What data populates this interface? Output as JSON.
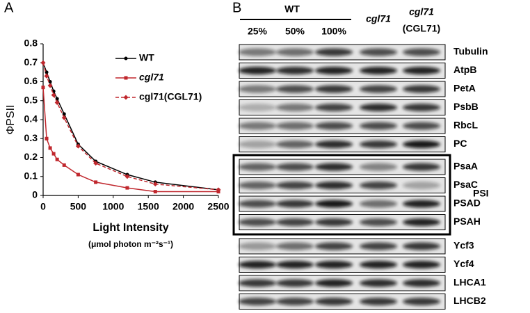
{
  "chart_data": {
    "type": "line",
    "panel_label": "A",
    "x_label": "Light Intensity",
    "x_unit_label": "(μmol photon m⁻²s⁻¹)",
    "y_label": "ΦPSII",
    "x": [
      0,
      50,
      100,
      150,
      200,
      300,
      500,
      750,
      1200,
      1600,
      2500
    ],
    "series": [
      {
        "name": "WT",
        "color": "#000000",
        "marker": "circle",
        "dash": false,
        "italic": false,
        "values": [
          0.7,
          0.65,
          0.6,
          0.55,
          0.51,
          0.43,
          0.27,
          0.18,
          0.11,
          0.07,
          0.03
        ]
      },
      {
        "name": "cgl71",
        "color": "#c0272d",
        "marker": "square",
        "dash": false,
        "italic": true,
        "values": [
          0.57,
          0.3,
          0.25,
          0.22,
          0.19,
          0.16,
          0.11,
          0.07,
          0.04,
          0.02,
          0.02
        ]
      },
      {
        "name": "cgl71(CGL71)",
        "color": "#c0272d",
        "marker": "diamond",
        "dash": true,
        "italic": false,
        "values": [
          0.7,
          0.63,
          0.58,
          0.53,
          0.49,
          0.41,
          0.26,
          0.17,
          0.1,
          0.06,
          0.03
        ]
      }
    ],
    "xlim": [
      0,
      2500
    ],
    "xticks": [
      0,
      500,
      1000,
      1500,
      2000,
      2500
    ],
    "ylim": [
      0,
      0.8
    ],
    "yticks": [
      0,
      0.1,
      0.2,
      0.3,
      0.4,
      0.5,
      0.6,
      0.7,
      0.8
    ],
    "grid": false,
    "legend": "upper right"
  },
  "blot": {
    "panel_label": "B",
    "group_label": "WT",
    "lanes": [
      "25%",
      "50%",
      "100%",
      "cgl71",
      "cgl71"
    ],
    "lane5_sub": "(CGL71)",
    "sections": [
      {
        "rows": [
          {
            "name": "Tubulin",
            "bands": [
              0.5,
              0.55,
              0.8,
              0.7,
              0.7
            ]
          },
          {
            "name": "AtpB",
            "bands": [
              0.9,
              0.85,
              0.9,
              0.9,
              0.9
            ]
          },
          {
            "name": "PetA",
            "bands": [
              0.5,
              0.7,
              0.8,
              0.75,
              0.8
            ]
          },
          {
            "name": "PsbB",
            "bands": [
              0.25,
              0.5,
              0.75,
              0.85,
              0.8
            ]
          },
          {
            "name": "RbcL",
            "bands": [
              0.5,
              0.55,
              0.7,
              0.7,
              0.7
            ]
          },
          {
            "name": "PC",
            "bands": [
              0.3,
              0.6,
              0.85,
              0.8,
              0.95
            ]
          }
        ]
      },
      {
        "label": "PSI",
        "rows": [
          {
            "name": "PsaA",
            "bands": [
              0.6,
              0.7,
              0.85,
              0.45,
              0.8
            ]
          },
          {
            "name": "PsaC",
            "bands": [
              0.6,
              0.75,
              0.85,
              0.75,
              0.3
            ]
          },
          {
            "name": "PSAD",
            "bands": [
              0.7,
              0.8,
              0.95,
              0.55,
              0.9
            ]
          },
          {
            "name": "PSAH",
            "bands": [
              0.7,
              0.75,
              0.8,
              0.7,
              0.9
            ]
          }
        ]
      },
      {
        "rows": [
          {
            "name": "Ycf3",
            "bands": [
              0.35,
              0.55,
              0.75,
              0.75,
              0.8
            ]
          },
          {
            "name": "Ycf4",
            "bands": [
              0.9,
              0.9,
              0.9,
              0.9,
              0.9
            ]
          },
          {
            "name": "LHCA1",
            "bands": [
              0.8,
              0.8,
              0.9,
              0.85,
              0.85
            ]
          },
          {
            "name": "LHCB2",
            "bands": [
              0.75,
              0.75,
              0.8,
              0.8,
              0.8
            ]
          }
        ]
      }
    ]
  }
}
